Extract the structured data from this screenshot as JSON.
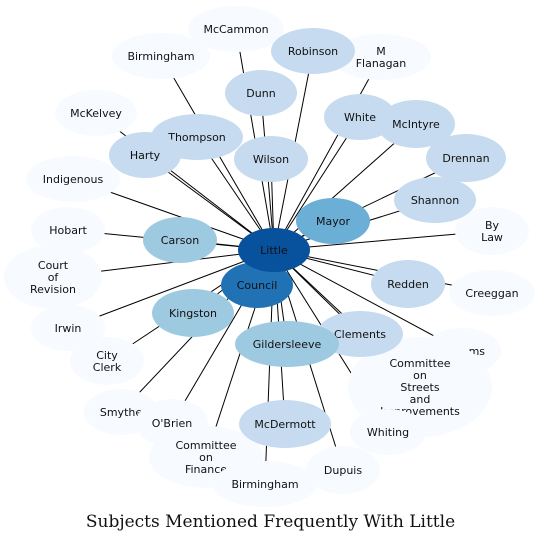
{
  "title": "Subjects Mentioned Frequently With Little",
  "chart_data": {
    "type": "network",
    "title": "Subjects Mentioned Frequently With Little",
    "center": "Little",
    "nodes": [
      {
        "id": "little",
        "label": "Little",
        "shade": 5
      },
      {
        "id": "council",
        "label": "Council",
        "shade": 4
      },
      {
        "id": "mayor",
        "label": "Mayor",
        "shade": 3
      },
      {
        "id": "carson",
        "label": "Carson",
        "shade": 2
      },
      {
        "id": "kingston",
        "label": "Kingston",
        "shade": 2
      },
      {
        "id": "gildersleeve",
        "label": "Gildersleeve",
        "shade": 2
      },
      {
        "id": "thompson",
        "label": "Thompson",
        "shade": 1
      },
      {
        "id": "wilson",
        "label": "Wilson",
        "shade": 1
      },
      {
        "id": "redden",
        "label": "Redden",
        "shade": 1
      },
      {
        "id": "robinson",
        "label": "Robinson",
        "shade": 1
      },
      {
        "id": "dunn",
        "label": "Dunn",
        "shade": 1
      },
      {
        "id": "white",
        "label": "White",
        "shade": 1
      },
      {
        "id": "mcintyre",
        "label": "McIntyre",
        "shade": 1
      },
      {
        "id": "drennan",
        "label": "Drennan",
        "shade": 1
      },
      {
        "id": "shannon",
        "label": "Shannon",
        "shade": 1
      },
      {
        "id": "clements",
        "label": "Clements",
        "shade": 1
      },
      {
        "id": "mcdermott",
        "label": "McDermott",
        "shade": 1
      },
      {
        "id": "harty",
        "label": "Harty",
        "shade": 1
      },
      {
        "id": "mccammon",
        "label": "McCammon",
        "shade": 0
      },
      {
        "id": "birmingham",
        "label": "Birmingham",
        "shade": 0
      },
      {
        "id": "m-flanagan",
        "label": "M\nFlanagan",
        "shade": 0
      },
      {
        "id": "mckelvey",
        "label": "McKelvey",
        "shade": 0
      },
      {
        "id": "indigenous",
        "label": "Indigenous",
        "shade": 0
      },
      {
        "id": "by-law",
        "label": "By\nLaw",
        "shade": 0
      },
      {
        "id": "hobart",
        "label": "Hobart",
        "shade": 0
      },
      {
        "id": "court-of-revision",
        "label": "Court\nof\nRevision",
        "shade": 0
      },
      {
        "id": "creeggan",
        "label": "Creeggan",
        "shade": 0
      },
      {
        "id": "irwin",
        "label": "Irwin",
        "shade": 0
      },
      {
        "id": "williams",
        "label": "Williams",
        "shade": 0
      },
      {
        "id": "city-clerk",
        "label": "City\nClerk",
        "shade": 0
      },
      {
        "id": "committee-streets",
        "label": "Committee\non\nStreets\nand\nImprovements",
        "shade": 0
      },
      {
        "id": "smythe",
        "label": "Smythe",
        "shade": 0
      },
      {
        "id": "obrien",
        "label": "O'Brien",
        "shade": 0
      },
      {
        "id": "committee-finance",
        "label": "Committee\non\nFinance",
        "shade": 0
      },
      {
        "id": "whiting",
        "label": "Whiting",
        "shade": 0
      },
      {
        "id": "birmingham-2",
        "label": "Birmingham",
        "shade": 0
      },
      {
        "id": "dupuis",
        "label": "Dupuis",
        "shade": 0
      }
    ],
    "edges": [
      [
        "little",
        "council"
      ],
      [
        "little",
        "mayor"
      ],
      [
        "little",
        "carson"
      ],
      [
        "little",
        "kingston"
      ],
      [
        "little",
        "gildersleeve"
      ],
      [
        "little",
        "thompson"
      ],
      [
        "little",
        "wilson"
      ],
      [
        "little",
        "redden"
      ],
      [
        "little",
        "robinson"
      ],
      [
        "little",
        "dunn"
      ],
      [
        "little",
        "white"
      ],
      [
        "little",
        "mcintyre"
      ],
      [
        "little",
        "drennan"
      ],
      [
        "little",
        "shannon"
      ],
      [
        "little",
        "clements"
      ],
      [
        "little",
        "mcdermott"
      ],
      [
        "little",
        "harty"
      ],
      [
        "little",
        "mccammon"
      ],
      [
        "little",
        "birmingham"
      ],
      [
        "little",
        "m-flanagan"
      ],
      [
        "little",
        "mckelvey"
      ],
      [
        "little",
        "indigenous"
      ],
      [
        "little",
        "by-law"
      ],
      [
        "little",
        "hobart"
      ],
      [
        "little",
        "court-of-revision"
      ],
      [
        "little",
        "creeggan"
      ],
      [
        "little",
        "irwin"
      ],
      [
        "little",
        "williams"
      ],
      [
        "little",
        "city-clerk"
      ],
      [
        "little",
        "committee-streets"
      ],
      [
        "little",
        "smythe"
      ],
      [
        "little",
        "obrien"
      ],
      [
        "little",
        "committee-finance"
      ],
      [
        "little",
        "whiting"
      ],
      [
        "little",
        "birmingham-2"
      ],
      [
        "little",
        "dupuis"
      ]
    ],
    "palette": [
      "#f7fbff",
      "#c6dbef",
      "#9ecae1",
      "#6baed6",
      "#2171b5",
      "#08519c"
    ]
  }
}
